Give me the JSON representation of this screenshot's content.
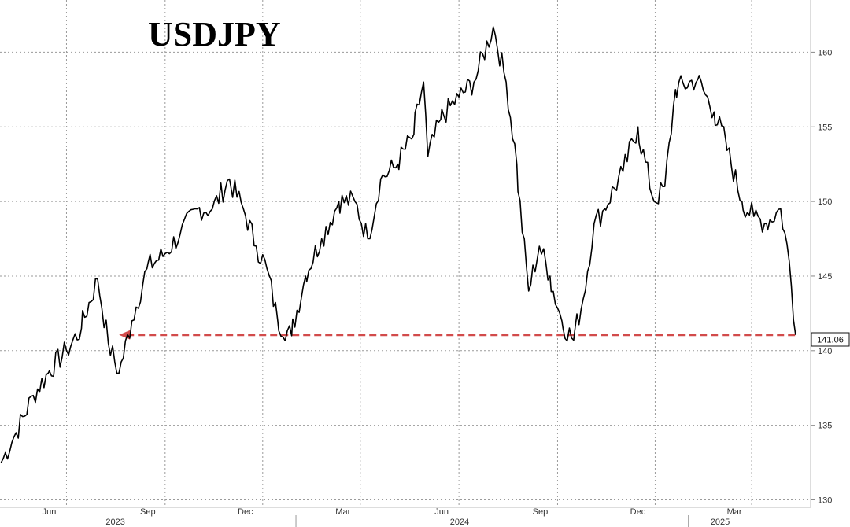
{
  "chart_data": {
    "type": "line",
    "title": "USDJPY",
    "series": [
      {
        "color": "#000000",
        "x": [
          "2023-04-01",
          "2023-04-15",
          "2023-05-01",
          "2023-05-15",
          "2023-06-01",
          "2023-06-15",
          "2023-06-30",
          "2023-07-10",
          "2023-07-20",
          "2023-08-01",
          "2023-08-15",
          "2023-09-01",
          "2023-09-15",
          "2023-10-01",
          "2023-10-15",
          "2023-10-31",
          "2023-11-13",
          "2023-11-25",
          "2023-12-05",
          "2023-12-15",
          "2023-12-28",
          "2024-01-10",
          "2024-01-25",
          "2024-02-10",
          "2024-02-25",
          "2024-03-08",
          "2024-03-20",
          "2024-04-05",
          "2024-04-20",
          "2024-04-29",
          "2024-05-03",
          "2024-05-15",
          "2024-06-01",
          "2024-06-15",
          "2024-07-03",
          "2024-07-15",
          "2024-07-25",
          "2024-08-05",
          "2024-08-15",
          "2024-08-25",
          "2024-09-05",
          "2024-09-16",
          "2024-09-25",
          "2024-10-05",
          "2024-10-15",
          "2024-11-01",
          "2024-11-15",
          "2024-11-30",
          "2024-12-10",
          "2024-12-20",
          "2025-01-10",
          "2025-01-25",
          "2025-02-05",
          "2025-02-20",
          "2025-03-03",
          "2025-03-15",
          "2025-03-28",
          "2025-04-05",
          "2025-04-11"
        ],
        "values": [
          132.5,
          134.5,
          137.0,
          138.5,
          140.0,
          141.5,
          144.8,
          140.5,
          138.5,
          142.0,
          145.5,
          146.5,
          147.8,
          149.5,
          149.5,
          151.5,
          149.5,
          147.0,
          145.5,
          142.0,
          141.0,
          145.0,
          147.5,
          150.0,
          150.0,
          147.5,
          151.5,
          152.5,
          154.5,
          158.0,
          153.0,
          155.5,
          157.0,
          158.0,
          161.7,
          158.0,
          152.5,
          144.0,
          147.0,
          145.0,
          142.0,
          140.7,
          143.5,
          148.5,
          149.5,
          152.0,
          155.0,
          150.0,
          151.0,
          157.5,
          158.2,
          156.0,
          154.0,
          150.0,
          149.0,
          148.5,
          149.5,
          146.0,
          141.06
        ]
      }
    ],
    "reference_line": {
      "value": 141.06,
      "color": "#d24b4b"
    },
    "last_value_label": "141.06",
    "y_axis": {
      "position": "right",
      "ticks": [
        130,
        135,
        140,
        145,
        150,
        155,
        160
      ],
      "range": [
        129.5,
        163.5
      ]
    },
    "x_axis": {
      "range": [
        "2023-03-31",
        "2025-04-25"
      ],
      "month_ticks": [
        {
          "label": "Jun",
          "date": "2023-06-01"
        },
        {
          "label": "Sep",
          "date": "2023-09-01"
        },
        {
          "label": "Dec",
          "date": "2023-12-01"
        },
        {
          "label": "Mar",
          "date": "2024-03-01"
        },
        {
          "label": "Jun",
          "date": "2024-06-01"
        },
        {
          "label": "Sep",
          "date": "2024-09-01"
        },
        {
          "label": "Dec",
          "date": "2024-12-01"
        },
        {
          "label": "Mar",
          "date": "2025-03-01"
        }
      ],
      "year_labels": [
        {
          "label": "2023",
          "date": "2023-08-15"
        },
        {
          "label": "2024",
          "date": "2024-07-01"
        },
        {
          "label": "2025",
          "date": "2025-03-01"
        }
      ],
      "year_boundaries": [
        "2024-01-01",
        "2025-01-01"
      ]
    },
    "grid": true
  }
}
